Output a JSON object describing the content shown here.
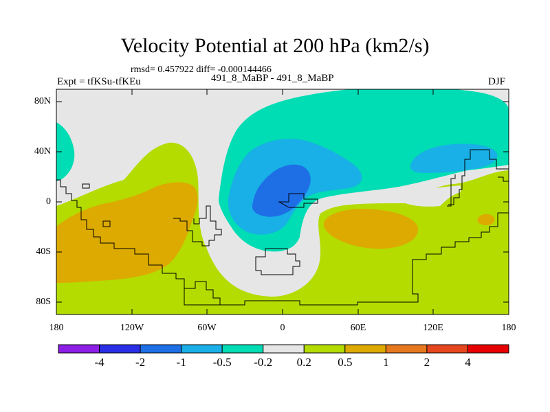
{
  "title": "Velocity Potential at 200 hPa (km2/s)",
  "stats": "rmsd= 0.457922 diff= -0.000144466",
  "experiment": "Expt = tfKSu-tfKEu",
  "subtitle": "491_8_MaBP - 491_8_MaBP",
  "season": "DJF",
  "y_ticks": [
    "80N",
    "40N",
    "0",
    "40S",
    "80S"
  ],
  "x_ticks": [
    "180",
    "120W",
    "60W",
    "0",
    "60E",
    "120E",
    "180"
  ],
  "colorbar": {
    "labels": [
      "-4",
      "-2",
      "-1",
      "-0.5",
      "-0.2",
      "0.2",
      "0.5",
      "1",
      "2",
      "4"
    ],
    "colors": [
      "#8c1ee6",
      "#2a2ee6",
      "#1e6ee6",
      "#18b0e6",
      "#00dcb4",
      "#e6e6e6",
      "#b4dc00",
      "#dcaa00",
      "#e6781e",
      "#e6461e",
      "#e60000"
    ]
  },
  "field_colors": {
    "background": "#e6e6e6",
    "weak_positive": "#b4dc00",
    "positive": "#dcaa00",
    "weak_negative": "#00dcb4",
    "negative": "#18b0e6",
    "strong_negative": "#1e6ee6",
    "land_outline": "#000000"
  }
}
